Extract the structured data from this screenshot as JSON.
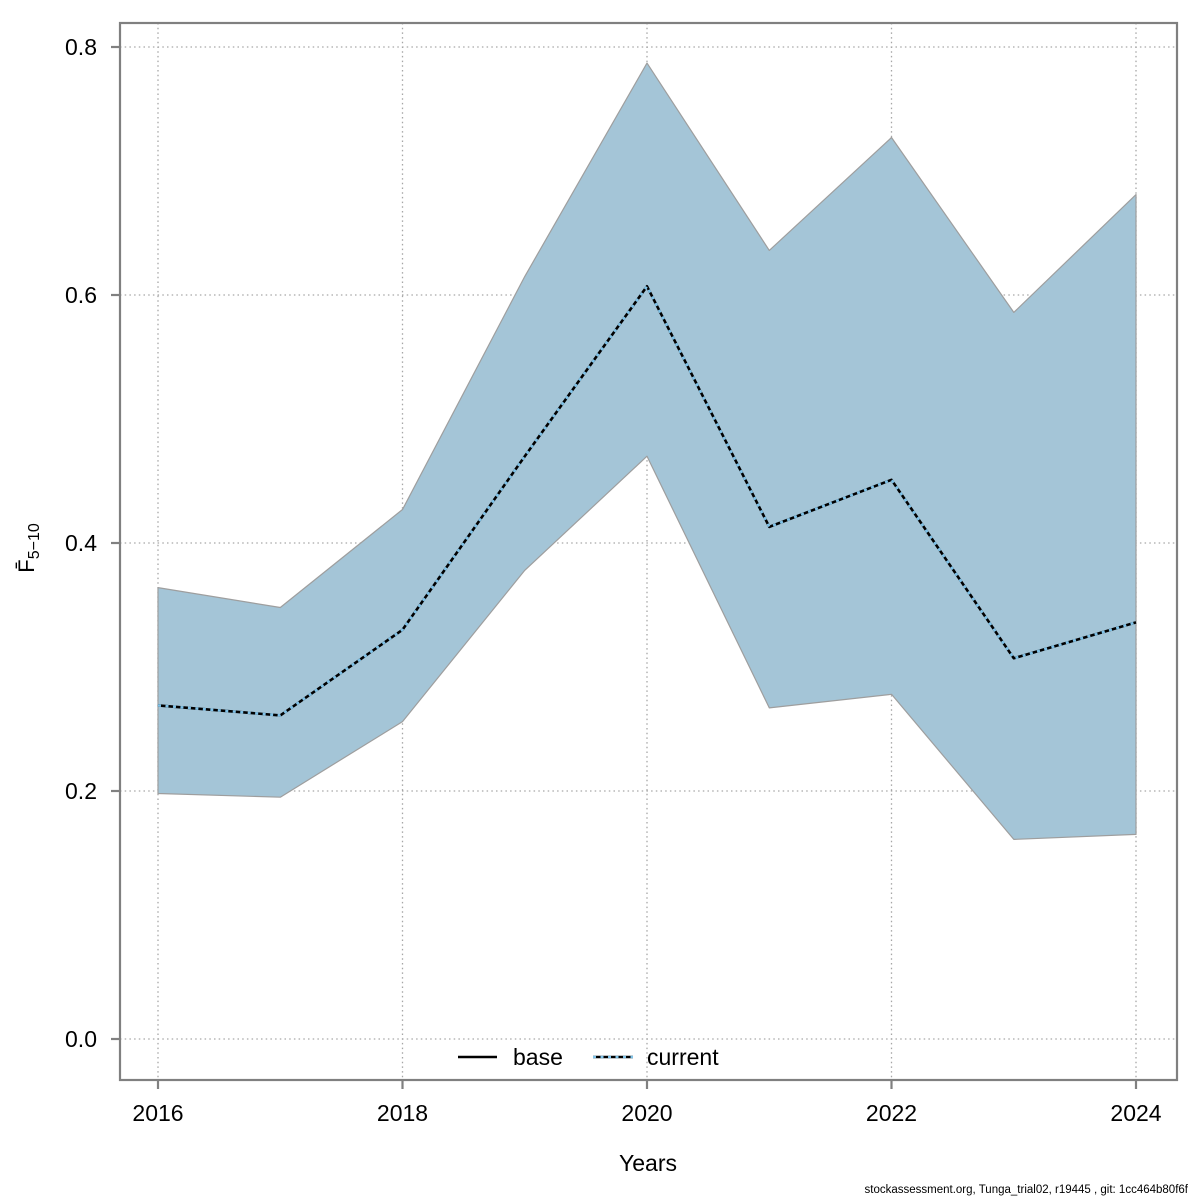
{
  "chart_data": {
    "type": "area",
    "title": "",
    "xlabel": "Years",
    "ylabel_main": "F̄",
    "ylabel_sub": "5−10",
    "x": [
      2016,
      2017,
      2018,
      2019,
      2020,
      2021,
      2022,
      2023,
      2024
    ],
    "series": [
      {
        "name": "current",
        "role": "median-line",
        "values": [
          0.269,
          0.261,
          0.33,
          0.47,
          0.607,
          0.413,
          0.451,
          0.307,
          0.336
        ]
      },
      {
        "name": "ci_lower",
        "role": "band-lower",
        "values": [
          0.198,
          0.195,
          0.256,
          0.378,
          0.47,
          0.267,
          0.278,
          0.161,
          0.165
        ]
      },
      {
        "name": "ci_upper",
        "role": "band-upper",
        "values": [
          0.364,
          0.348,
          0.427,
          0.615,
          0.787,
          0.636,
          0.727,
          0.586,
          0.681
        ]
      }
    ],
    "xticks": [
      2016,
      2018,
      2020,
      2022,
      2024
    ],
    "yticks": [
      0.0,
      0.2,
      0.4,
      0.6,
      0.8
    ],
    "xlim": [
      2015.7,
      2024.34
    ],
    "ylim": [
      -0.033,
      0.819
    ],
    "grid": "dotted",
    "legend_position": "bottom-center-inside",
    "legend": [
      {
        "label": "base",
        "style": "solid-black"
      },
      {
        "label": "current",
        "style": "dotted-blue"
      }
    ],
    "colors": {
      "band_fill": "#a4c5d7",
      "band_border": "#9e9e9e",
      "line_base": "#000000",
      "line_current": "#7fc2e8",
      "grid": "#a6a6a6",
      "axis": "#808080",
      "text": "#000000"
    }
  },
  "footer": {
    "text": "stockassessment.org, Tunga_trial02, r19445 , git: 1cc464b80f6f"
  }
}
